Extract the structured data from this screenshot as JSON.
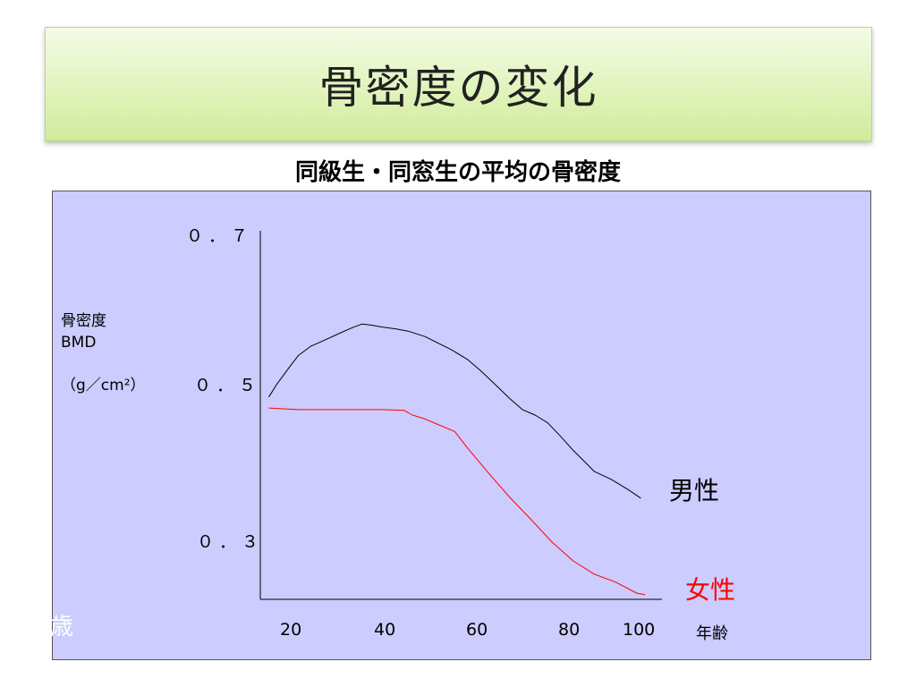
{
  "slide": {
    "title": "骨密度の変化",
    "stray_text": "歳"
  },
  "chart_data": {
    "type": "line",
    "title": "同級生・同窓生の平均の骨密度",
    "ylabel_lines": [
      "骨密度",
      "BMD",
      "（g／cm²）"
    ],
    "xlabel": "年齢",
    "y_ticks": [
      "０．７",
      "０．５",
      "０．３"
    ],
    "x_ticks": [
      "20",
      "40",
      "60",
      "80",
      "100"
    ],
    "ylim": [
      0.24,
      0.71
    ],
    "xlim": [
      11,
      106
    ],
    "grid": false,
    "series": [
      {
        "name": "男性",
        "color": "#000000",
        "x": [
          13,
          15,
          18,
          20,
          23,
          26,
          30,
          33,
          35,
          37,
          40,
          43,
          46,
          50,
          53,
          56,
          60,
          63,
          66,
          70,
          73,
          76,
          79,
          82,
          85,
          88,
          90,
          94,
          98,
          101
        ],
        "y": [
          0.498,
          0.515,
          0.537,
          0.551,
          0.563,
          0.57,
          0.58,
          0.587,
          0.591,
          0.59,
          0.587,
          0.585,
          0.582,
          0.575,
          0.567,
          0.559,
          0.546,
          0.532,
          0.517,
          0.496,
          0.482,
          0.475,
          0.465,
          0.448,
          0.43,
          0.414,
          0.403,
          0.393,
          0.38,
          0.369
        ]
      },
      {
        "name": "女性",
        "color": "#ff0000",
        "x": [
          13,
          20,
          30,
          40,
          45,
          47,
          50,
          53,
          57,
          60,
          65,
          70,
          75,
          80,
          85,
          90,
          95,
          100,
          102
        ],
        "y": [
          0.484,
          0.482,
          0.482,
          0.482,
          0.481,
          0.475,
          0.47,
          0.463,
          0.454,
          0.433,
          0.401,
          0.37,
          0.342,
          0.313,
          0.289,
          0.272,
          0.262,
          0.248,
          0.246
        ]
      }
    ]
  }
}
